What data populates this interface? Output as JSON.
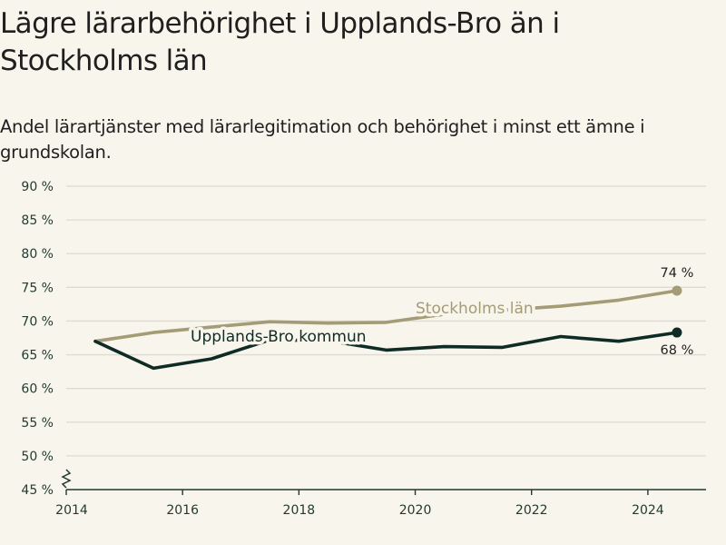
{
  "title": "Lägre lärarbehörighet i Upplands-Bro än i Stockholms län",
  "subtitle": "Andel lärartjänster med lärarlegitimation och behörighet i minst ett ämne i grundskolan.",
  "chart_data": {
    "type": "line",
    "x": [
      2014.5,
      2015.5,
      2016.5,
      2017.5,
      2018.5,
      2019.5,
      2020.5,
      2021.5,
      2022.5,
      2023.5,
      2024.5
    ],
    "series": [
      {
        "name": "Stockholms län",
        "values": [
          67.0,
          68.3,
          69.1,
          69.9,
          69.7,
          69.8,
          71.0,
          71.6,
          72.2,
          73.1,
          74.5
        ],
        "color": "#a39c76",
        "end_label": "74 %"
      },
      {
        "name": "Upplands-Bro kommun",
        "values": [
          67.0,
          63.0,
          64.4,
          67.2,
          67.1,
          65.7,
          66.2,
          66.1,
          67.7,
          67.0,
          68.3
        ],
        "color": "#0e2c25",
        "end_label": "68 %"
      }
    ],
    "xlim": [
      2014,
      2025
    ],
    "ylim": [
      45,
      90
    ],
    "xticks": [
      2014,
      2016,
      2018,
      2020,
      2022,
      2024
    ],
    "xtick_labels": [
      "2014",
      "2016",
      "2018",
      "2020",
      "2022",
      "2024"
    ],
    "yticks": [
      45,
      50,
      55,
      60,
      65,
      70,
      75,
      80,
      85,
      90
    ],
    "ytick_labels": [
      "45 %",
      "50 %",
      "55 %",
      "60 %",
      "65 %",
      "70 %",
      "75 %",
      "80 %",
      "85 %",
      "90 %"
    ],
    "grid": true,
    "axis_break": true,
    "background": "#f8f5ec",
    "grid_color": "#dedbd2",
    "axis_color": "#1f3a30"
  }
}
